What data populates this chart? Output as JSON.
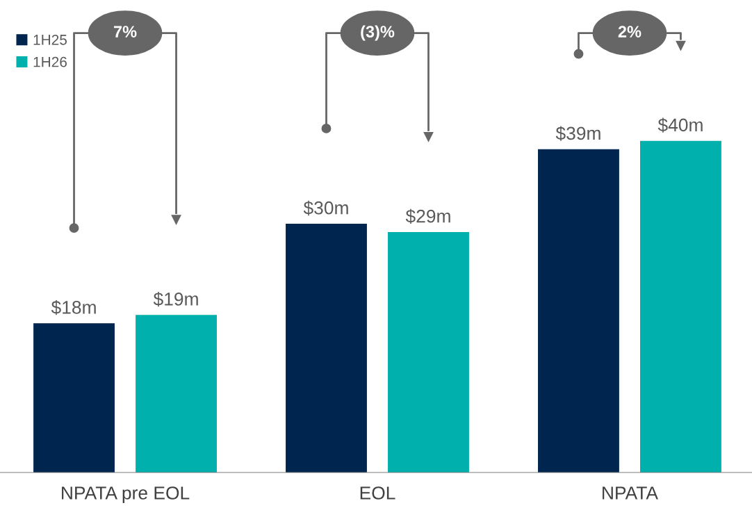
{
  "chart_data": {
    "type": "bar",
    "categories": [
      "NPATA pre EOL",
      "EOL",
      "NPATA"
    ],
    "series": [
      {
        "name": "1H25",
        "color": "#00264f",
        "values": [
          18,
          30,
          39
        ],
        "value_labels": [
          "$18m",
          "$30m",
          "$39m"
        ]
      },
      {
        "name": "1H26",
        "color": "#00b0ac",
        "values": [
          19,
          29,
          40
        ],
        "value_labels": [
          "$19m",
          "$29m",
          "$40m"
        ]
      }
    ],
    "tick_labels": "x",
    "legend": "top left",
    "grid": false,
    "annotations": [
      "7%",
      "(3)%",
      "2%"
    ]
  }
}
